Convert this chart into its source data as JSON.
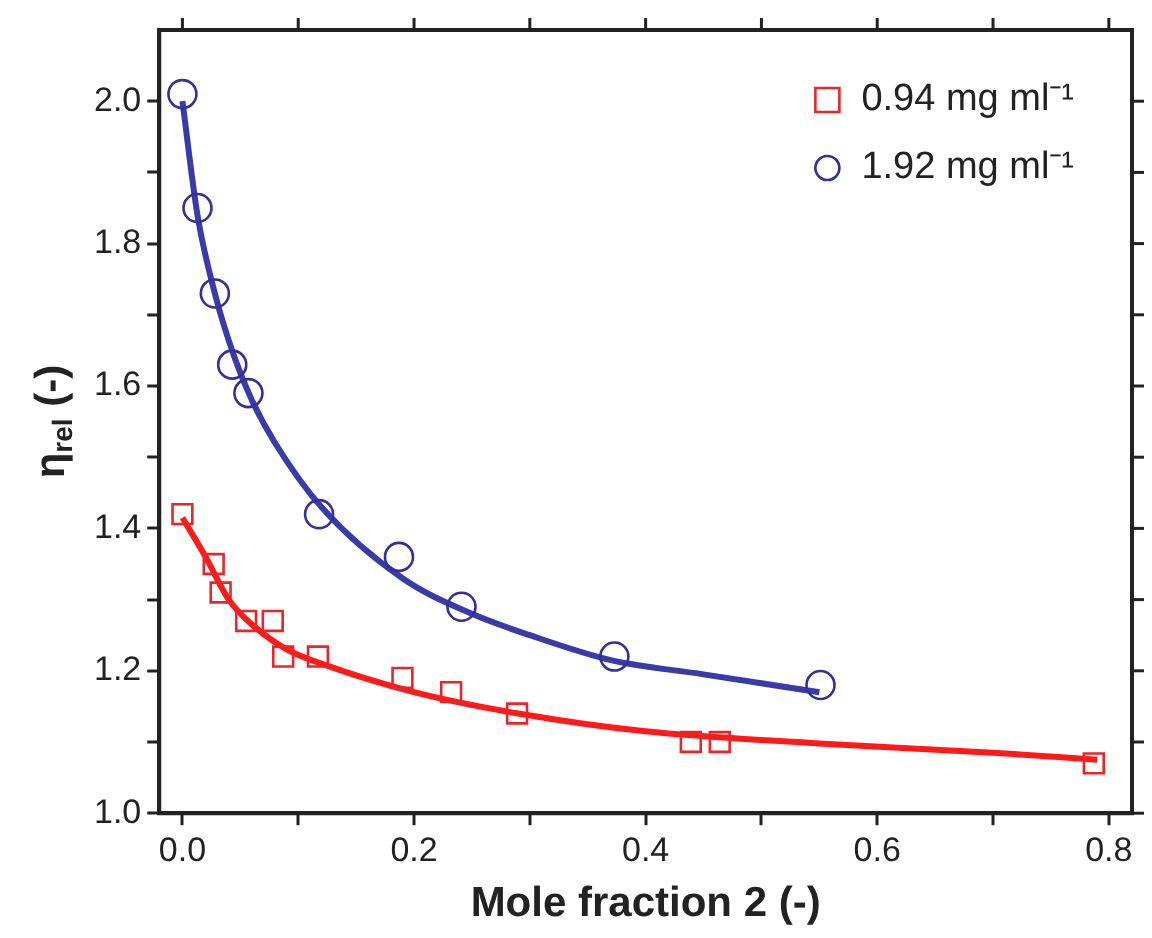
{
  "chart_data": {
    "type": "scatter",
    "xlabel": "Mole fraction 2 (-)",
    "ylabel": "η$_{rel}$ (-)",
    "xlim": [
      -0.02,
      0.82
    ],
    "ylim": [
      1.0,
      2.1
    ],
    "xticks": [
      "0.0",
      {
        "value": 0.1,
        "label": null
      },
      0.2,
      {
        "value": 0.3,
        "label": null
      },
      0.4,
      {
        "value": 0.5,
        "label": null
      },
      0.6,
      {
        "value": 0.7,
        "label": null
      },
      0.8
    ],
    "yticks": [
      "1.0",
      {
        "value": 1.1,
        "label": null
      },
      1.2,
      {
        "value": 1.3,
        "label": null
      },
      1.4,
      {
        "value": 1.5,
        "label": null
      },
      1.6,
      {
        "value": 1.7,
        "label": null
      },
      1.8,
      {
        "value": 1.9,
        "label": null
      },
      "2.0"
    ],
    "grid": false,
    "legend": "top right",
    "series": [
      {
        "name": "0.94 mg ml⁻¹",
        "color": "#e8262a",
        "marker": "square",
        "x": [
          0,
          0.027,
          0.033,
          0.055,
          0.078,
          0.087,
          0.117,
          0.19,
          0.232,
          0.289,
          0.439,
          0.464,
          0.787
        ],
        "values": [
          1.42,
          1.35,
          1.31,
          1.27,
          1.27,
          1.22,
          1.22,
          1.19,
          1.17,
          1.14,
          1.1,
          1.1,
          1.07
        ]
      },
      {
        "name": "1.92 mg ml⁻¹",
        "color": "#33309a",
        "marker": "circle",
        "x": [
          0,
          0.013,
          0.028,
          0.043,
          0.057,
          0.118,
          0.187,
          0.241,
          0.373,
          0.551
        ],
        "values": [
          2.01,
          1.85,
          1.73,
          1.63,
          1.59,
          1.42,
          1.36,
          1.29,
          1.22,
          1.18
        ]
      },
      {
        "type": "line",
        "color": "#ff1a1a",
        "marker": "none",
        "line_style": "solid",
        "x": [
          0,
          0.02,
          0.04,
          0.06,
          0.09,
          0.12,
          0.2,
          0.29,
          0.4,
          0.55,
          0.7,
          0.79
        ],
        "values": [
          1.415,
          1.36,
          1.3,
          1.265,
          1.23,
          1.21,
          1.17,
          1.14,
          1.115,
          1.098,
          1.085,
          1.075
        ]
      },
      {
        "type": "line",
        "color": "#3a3aa8",
        "marker": "none",
        "line_style": "solid",
        "x": [
          0,
          0.013,
          0.028,
          0.045,
          0.06,
          0.08,
          0.12,
          0.19,
          0.25,
          0.3,
          0.37,
          0.45,
          0.55
        ],
        "values": [
          2.0,
          1.84,
          1.73,
          1.64,
          1.58,
          1.52,
          1.43,
          1.33,
          1.28,
          1.25,
          1.215,
          1.195,
          1.17
        ]
      }
    ]
  }
}
